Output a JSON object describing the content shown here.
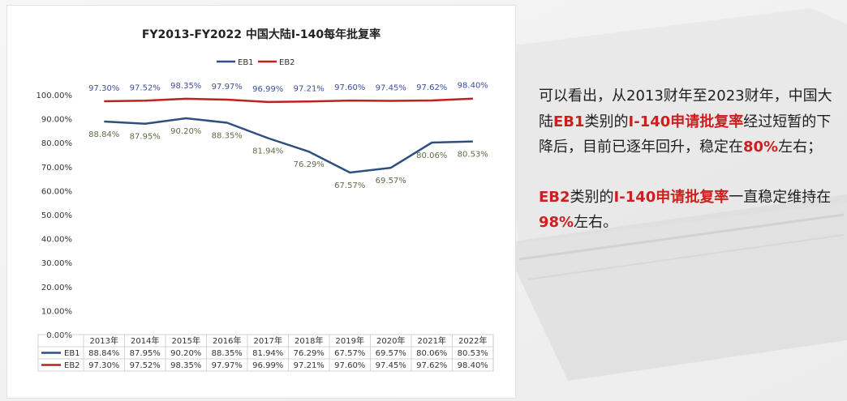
{
  "chart_data": {
    "type": "line",
    "title": "FY2013-FY2022 中国大陆I-140每年批复率",
    "categories": [
      "2013年",
      "2014年",
      "2015年",
      "2016年",
      "2017年",
      "2018年",
      "2019年",
      "2020年",
      "2021年",
      "2022年"
    ],
    "ylim": [
      0,
      100
    ],
    "y_ticks": [
      "0.00%",
      "10.00%",
      "20.00%",
      "30.00%",
      "40.00%",
      "50.00%",
      "60.00%",
      "70.00%",
      "80.00%",
      "90.00%",
      "100.00%"
    ],
    "grid": false,
    "legend": "top-center",
    "series": [
      {
        "name": "EB1",
        "color": "#2e4f7f",
        "label_color": "#5b6e46",
        "label_position": "below",
        "values": [
          88.84,
          87.95,
          90.2,
          88.35,
          81.94,
          76.29,
          67.57,
          69.57,
          80.06,
          80.53
        ],
        "labels": [
          "88.84%",
          "87.95%",
          "90.20%",
          "88.35%",
          "81.94%",
          "76.29%",
          "67.57%",
          "69.57%",
          "80.06%",
          "80.53%"
        ]
      },
      {
        "name": "EB2",
        "color": "#c0201f",
        "label_color": "#3b4f9c",
        "label_position": "above",
        "values": [
          97.3,
          97.52,
          98.35,
          97.97,
          96.99,
          97.21,
          97.6,
          97.45,
          97.62,
          98.4
        ],
        "labels": [
          "97.30%",
          "97.52%",
          "98.35%",
          "97.97%",
          "96.99%",
          "97.21%",
          "97.60%",
          "97.45%",
          "97.62%",
          "98.40%"
        ]
      }
    ],
    "table": true
  },
  "commentary": {
    "p1": [
      {
        "text": "可以看出，从2013财年至2023财年，中国大陆",
        "hl": false
      },
      {
        "text": "EB1",
        "hl": true
      },
      {
        "text": "类别的",
        "hl": false
      },
      {
        "text": "I-140申请批复率",
        "hl": true
      },
      {
        "text": "经过短暂的下降后，目前已逐年回升，稳定在",
        "hl": false
      },
      {
        "text": "80%",
        "hl": true
      },
      {
        "text": "左右；",
        "hl": false
      }
    ],
    "p2": [
      {
        "text": "EB2",
        "hl": true
      },
      {
        "text": "类别的",
        "hl": false
      },
      {
        "text": "I-140申请批复率",
        "hl": true
      },
      {
        "text": "一直稳定维持在",
        "hl": false
      },
      {
        "text": "98%",
        "hl": true
      },
      {
        "text": "左右。",
        "hl": false
      }
    ]
  }
}
